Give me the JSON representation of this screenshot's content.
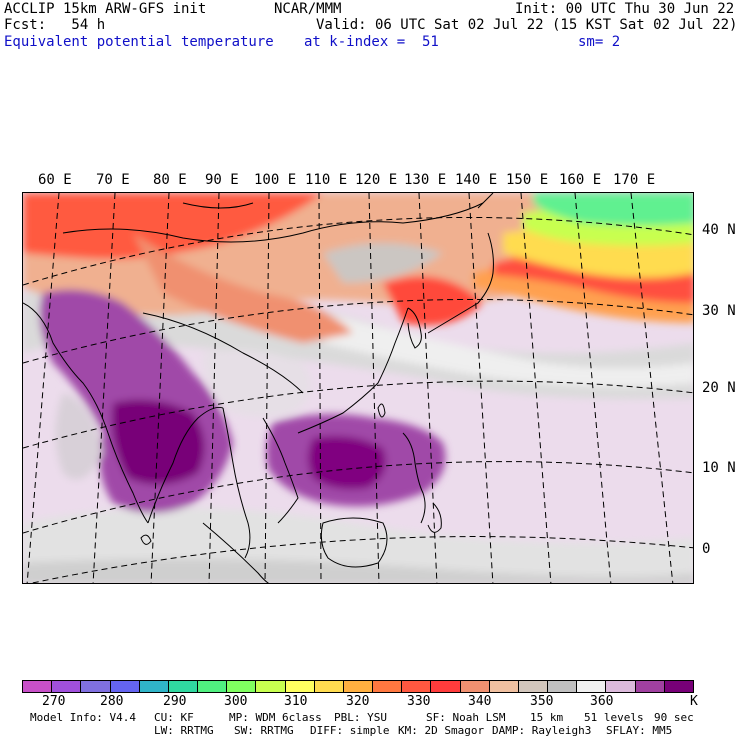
{
  "header": {
    "line1_left": "ACCLIP 15km ARW-GFS init",
    "line1_center": "NCAR/MMM",
    "line1_right": "Init: 00 UTC Thu 30 Jun 22",
    "line2_left": "Fcst:   54 h",
    "line2_right": "Valid: 06 UTC Sat 02 Jul 22 (15 KST Sat 02 Jul 22)",
    "line3_left": "Equivalent potential temperature",
    "line3_center": "at k-index =  51",
    "line3_right": "sm= 2"
  },
  "map": {
    "lon_labels": [
      "60 E",
      "70 E",
      "80 E",
      "90 E",
      "100 E",
      "110 E",
      "120 E",
      "130 E",
      "140 E",
      "150 E",
      "160 E",
      "170 E"
    ],
    "lat_labels": [
      "40 N",
      "30 N",
      "20 N",
      "10 N",
      "0"
    ]
  },
  "colorbar": {
    "colors": [
      "#c850c8",
      "#a050dc",
      "#8070e0",
      "#6464f0",
      "#30b4c8",
      "#30d8a0",
      "#50f080",
      "#80ff60",
      "#c8ff50",
      "#ffff60",
      "#ffdc50",
      "#ffb040",
      "#ff7840",
      "#ff5840",
      "#ff3c3c",
      "#f09070",
      "#f0c0a0",
      "#d2c6bc",
      "#c0c0c0",
      "#f0f0f0",
      "#dcbadc",
      "#a040a0",
      "#780078"
    ],
    "tick_labels": [
      "270",
      "280",
      "290",
      "300",
      "310",
      "320",
      "330",
      "340",
      "350",
      "360",
      "K"
    ]
  },
  "footer": {
    "line1": [
      "Model Info: V4.4",
      "CU: KF",
      "MP: WDM 6class",
      "PBL: YSU",
      "SF: Noah LSM",
      "15 km",
      "51 levels",
      "90 sec"
    ],
    "line2": [
      "LW: RRTMG",
      "SW: RRTMG",
      "DIFF: simple",
      "KM: 2D Smagor",
      "DAMP: Rayleigh3",
      "SFLAY: MM5"
    ]
  }
}
